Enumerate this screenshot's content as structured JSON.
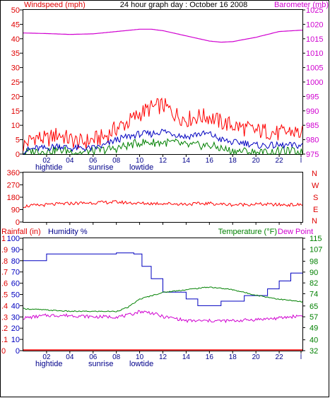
{
  "colors": {
    "red": "#e00000",
    "magenta": "#d000d0",
    "blue": "#0000c0",
    "green": "#008000",
    "navy": "#00008b",
    "black": "#000000",
    "bg": "#ffffff",
    "grid": "#000000"
  },
  "top": {
    "title": "24 hour graph day : October 16 2008",
    "left_label": "Windspeed (mph)",
    "right_label": "Barometer (mb)"
  },
  "middle": {
    "compass": [
      "N",
      "W",
      "S",
      "E",
      "N"
    ]
  },
  "bottom": {
    "left_label_1": "Rainfall (in)",
    "left_label_2": "Humidity %",
    "right_label_1": "Temperature (°F)",
    "right_label_2": "Dew Point"
  },
  "x_axis": {
    "ticks": [
      "02",
      "04",
      "06",
      "08",
      "10",
      "12",
      "14",
      "16",
      "18",
      "20",
      "22",
      "l"
    ],
    "events": [
      "hightide",
      "sunrise",
      "lowtide"
    ]
  },
  "chart_data": [
    {
      "type": "line",
      "name": "top-panel",
      "title": "24 hour graph day : October 16 2008",
      "x_range_hours": [
        0,
        24
      ],
      "left_axis": {
        "label": "Windspeed (mph)",
        "ticks": [
          0,
          5,
          10,
          15,
          20,
          25,
          30,
          35,
          40,
          45,
          50
        ],
        "ylim": [
          0,
          50
        ]
      },
      "right_axis": {
        "label": "Barometer (mb)",
        "ticks": [
          975,
          980,
          985,
          990,
          995,
          1000,
          1005,
          1010,
          1015,
          1020,
          1025
        ],
        "ylim": [
          975,
          1025
        ]
      },
      "series": [
        {
          "name": "Barometer (mb)",
          "axis": "right",
          "x": [
            0,
            2,
            4,
            6,
            8,
            10,
            11,
            12,
            14,
            16,
            17,
            18,
            20,
            22,
            24
          ],
          "values": [
            1017,
            1016.8,
            1016.5,
            1016.7,
            1017.5,
            1018.3,
            1018.3,
            1017.8,
            1016,
            1014.2,
            1013.8,
            1014,
            1015.5,
            1017.5,
            1018
          ]
        },
        {
          "name": "Wind gust",
          "axis": "left",
          "x": [
            0,
            1,
            2,
            3,
            4,
            5,
            6,
            7,
            8,
            9,
            10,
            11,
            12,
            13,
            14,
            15,
            16,
            17,
            18,
            19,
            20,
            21,
            22,
            23,
            24
          ],
          "values": [
            3,
            6,
            5,
            7,
            5,
            4,
            5,
            6,
            9,
            11,
            14,
            16,
            17,
            14,
            12,
            13,
            13,
            11,
            10,
            9,
            8,
            8,
            7,
            8,
            7
          ]
        },
        {
          "name": "Wind average",
          "axis": "left",
          "x": [
            0,
            1,
            2,
            3,
            4,
            5,
            6,
            7,
            8,
            9,
            10,
            11,
            12,
            13,
            14,
            15,
            16,
            17,
            18,
            19,
            20,
            21,
            22,
            23,
            24
          ],
          "values": [
            1,
            2,
            2,
            3,
            2,
            2,
            2,
            3,
            5,
            6,
            7,
            7,
            8,
            7,
            6,
            7,
            7,
            5,
            4,
            4,
            3,
            3,
            3,
            3,
            3
          ]
        },
        {
          "name": "Wind lull",
          "axis": "left",
          "x": [
            0,
            1,
            2,
            3,
            4,
            5,
            6,
            7,
            8,
            9,
            10,
            11,
            12,
            13,
            14,
            15,
            16,
            17,
            18,
            19,
            20,
            21,
            22,
            23,
            24
          ],
          "values": [
            0.5,
            1,
            1,
            1.5,
            1,
            0.5,
            1,
            1.5,
            2,
            3,
            4,
            4,
            4,
            4,
            3,
            3,
            3,
            2,
            1,
            1,
            0.5,
            0.5,
            1,
            1,
            0.5
          ]
        }
      ]
    },
    {
      "type": "line",
      "name": "wind-direction",
      "x_range_hours": [
        0,
        24
      ],
      "left_axis": {
        "ticks": [
          0,
          90,
          180,
          270,
          360
        ],
        "ylim": [
          0,
          360
        ]
      },
      "series": [
        {
          "name": "Wind direction",
          "x": [
            0,
            2,
            4,
            6,
            8,
            10,
            12,
            14,
            16,
            18,
            20,
            22,
            24
          ],
          "values": [
            115,
            125,
            135,
            140,
            145,
            135,
            135,
            130,
            135,
            125,
            130,
            125,
            125
          ]
        }
      ]
    },
    {
      "type": "line",
      "name": "bottom-panel",
      "x_range_hours": [
        0,
        24
      ],
      "left_axis_rain": {
        "label": "Rainfall (in)",
        "ticks": [
          0,
          0.1,
          0.2,
          0.3,
          0.4,
          0.5,
          0.6,
          0.7,
          0.8,
          0.9,
          1
        ],
        "ylim": [
          0,
          1
        ]
      },
      "left_axis_humidity": {
        "label": "Humidity %",
        "ticks": [
          0,
          10,
          20,
          30,
          40,
          50,
          60,
          70,
          80,
          90,
          100
        ],
        "ylim": [
          0,
          100
        ]
      },
      "right_axis": {
        "label": "Temperature (°F)",
        "ticks": [
          32,
          40,
          49,
          57,
          65,
          74,
          82,
          90,
          98,
          107,
          115
        ],
        "ylim": [
          32,
          115
        ]
      },
      "series": [
        {
          "name": "Humidity %",
          "axis": "humidity",
          "step": true,
          "x": [
            0,
            1,
            2,
            5,
            8,
            9.5,
            10.2,
            11,
            12,
            14,
            15,
            17,
            19,
            21,
            22,
            23,
            24
          ],
          "values": [
            80,
            80,
            86,
            86,
            87,
            86,
            75,
            64,
            52,
            46,
            40,
            44,
            49,
            55,
            62,
            69,
            69
          ]
        },
        {
          "name": "Temperature (°F)",
          "axis": "right",
          "x": [
            0,
            2,
            4,
            6,
            8,
            9,
            10,
            12,
            14,
            16,
            18,
            20,
            22,
            24
          ],
          "values": [
            63,
            62,
            61,
            61,
            61,
            64,
            70,
            75,
            77,
            79,
            77,
            73,
            70,
            68
          ]
        },
        {
          "name": "Dew Point",
          "axis": "right",
          "x": [
            0,
            2,
            4,
            6,
            8,
            9,
            10,
            11,
            12,
            13,
            14,
            16,
            18,
            20,
            22,
            24
          ],
          "values": [
            56,
            58,
            58,
            57,
            57,
            58,
            61,
            60,
            57,
            56,
            54,
            54,
            54,
            55,
            56,
            58
          ]
        },
        {
          "name": "Rainfall (in)",
          "axis": "rain",
          "x": [
            0,
            24
          ],
          "values": [
            0,
            0
          ]
        }
      ]
    }
  ]
}
